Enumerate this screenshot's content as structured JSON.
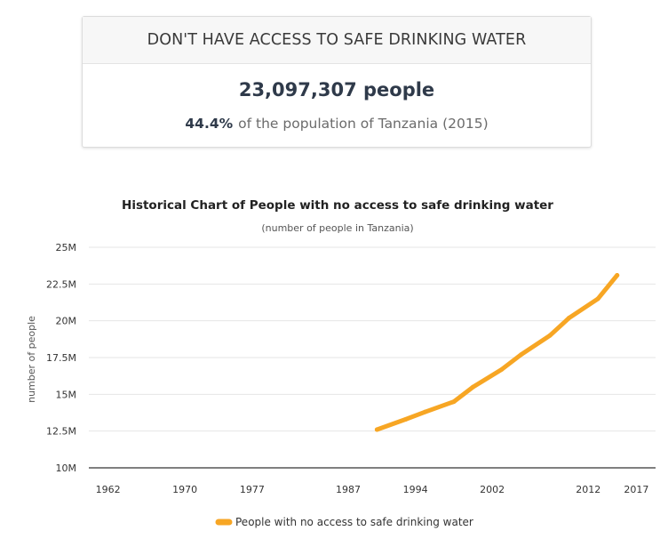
{
  "card": {
    "title": "DON'T HAVE ACCESS TO SAFE DRINKING WATER",
    "value": "23,097,307 people",
    "percent": "44.4%",
    "subtext": "of the population of Tanzania (2015)"
  },
  "colors": {
    "line": "#f7a624",
    "grid": "#e6e6e6",
    "axis": "#333333"
  },
  "chart_data": {
    "type": "line",
    "title": "Historical Chart of People with no access to safe drinking water",
    "subtitle": "(number of people in Tanzania)",
    "xlabel": "",
    "ylabel": "number of people",
    "xlim": [
      1960,
      2019
    ],
    "ylim": [
      10000000,
      25000000
    ],
    "x_ticks": [
      1962,
      1970,
      1977,
      1987,
      1994,
      2002,
      2012,
      2017
    ],
    "y_ticks": [
      10000000,
      12500000,
      15000000,
      17500000,
      20000000,
      22500000,
      25000000
    ],
    "y_tick_labels": [
      "10M",
      "12.5M",
      "15M",
      "17.5M",
      "20M",
      "22.5M",
      "25M"
    ],
    "grid": true,
    "legend_position": "bottom-center",
    "series": [
      {
        "name": "People with no access to safe drinking water",
        "x": [
          1990,
          1993,
          1995,
          1998,
          2000,
          2003,
          2005,
          2008,
          2010,
          2013,
          2015
        ],
        "y": [
          12600000,
          13300000,
          13800000,
          14500000,
          15500000,
          16700000,
          17700000,
          19000000,
          20200000,
          21500000,
          23097307
        ]
      }
    ]
  }
}
